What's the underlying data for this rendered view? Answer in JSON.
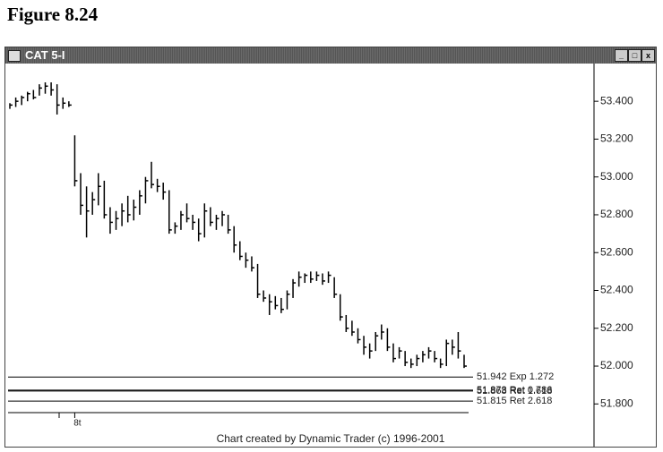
{
  "figure_title": "Figure 8.24",
  "window_title": "CAT 5-I",
  "chart_data": {
    "type": "ohlc",
    "categories": [
      null,
      null,
      null,
      null,
      null,
      null,
      null,
      null,
      null,
      null,
      null,
      "8t",
      null,
      null,
      null,
      null,
      null,
      null,
      null,
      null,
      null,
      null,
      null,
      null,
      null,
      null,
      null,
      null,
      null,
      null,
      null,
      null,
      null,
      null,
      null,
      null,
      null,
      null,
      null,
      null,
      null,
      null,
      null,
      null,
      null,
      null,
      null,
      null,
      null,
      null,
      null,
      null,
      null,
      null,
      null,
      null,
      null,
      null,
      null,
      null,
      null,
      null,
      null,
      null,
      null,
      null,
      null,
      null,
      null,
      null,
      null,
      null,
      null,
      null,
      null,
      null,
      null,
      null
    ],
    "high": [
      53.39,
      53.42,
      53.43,
      53.45,
      53.46,
      53.49,
      53.5,
      53.5,
      53.49,
      53.42,
      53.4,
      53.22,
      53.02,
      52.95,
      52.92,
      53.02,
      52.98,
      52.84,
      52.82,
      52.86,
      52.9,
      52.88,
      52.93,
      53.0,
      53.08,
      52.99,
      52.97,
      52.93,
      52.76,
      52.82,
      52.86,
      52.8,
      52.78,
      52.86,
      52.84,
      52.8,
      52.82,
      52.8,
      52.74,
      52.66,
      52.6,
      52.58,
      52.54,
      52.4,
      52.38,
      52.37,
      52.36,
      52.4,
      52.46,
      52.5,
      52.49,
      52.5,
      52.5,
      52.49,
      52.5,
      52.47,
      52.38,
      52.27,
      52.24,
      52.2,
      52.16,
      52.12,
      52.18,
      52.22,
      52.2,
      52.12,
      52.1,
      52.08,
      52.04,
      52.06,
      52.08,
      52.1,
      52.08,
      52.04,
      52.14,
      52.14,
      52.18,
      52.06
    ],
    "low": [
      53.36,
      53.37,
      53.38,
      53.4,
      53.41,
      53.43,
      53.44,
      53.43,
      53.33,
      53.36,
      53.37,
      52.95,
      52.8,
      52.68,
      52.8,
      52.85,
      52.78,
      52.7,
      52.72,
      52.74,
      52.76,
      52.77,
      52.8,
      52.86,
      52.94,
      52.92,
      52.88,
      52.7,
      52.7,
      52.72,
      52.76,
      52.72,
      52.66,
      52.68,
      52.74,
      52.72,
      52.74,
      52.7,
      52.6,
      52.56,
      52.52,
      52.5,
      52.36,
      52.34,
      52.27,
      52.3,
      52.28,
      52.3,
      52.36,
      52.42,
      52.44,
      52.44,
      52.45,
      52.43,
      52.44,
      52.36,
      52.24,
      52.18,
      52.16,
      52.12,
      52.06,
      52.04,
      52.08,
      52.14,
      52.08,
      52.02,
      52.04,
      52.0,
      51.99,
      52.0,
      52.02,
      52.04,
      52.02,
      51.99,
      52.0,
      52.06,
      52.04,
      51.99
    ],
    "close": [
      53.38,
      53.4,
      53.42,
      53.44,
      53.42,
      53.47,
      53.48,
      53.46,
      53.38,
      53.39,
      53.38,
      52.98,
      52.85,
      52.82,
      52.88,
      52.95,
      52.8,
      52.76,
      52.78,
      52.82,
      52.8,
      52.84,
      52.9,
      52.98,
      52.96,
      52.95,
      52.92,
      52.72,
      52.74,
      52.8,
      52.78,
      52.76,
      52.7,
      52.82,
      52.76,
      52.78,
      52.8,
      52.72,
      52.64,
      52.58,
      52.56,
      52.52,
      52.38,
      52.36,
      52.34,
      52.32,
      52.3,
      52.38,
      52.44,
      52.47,
      52.48,
      52.46,
      52.48,
      52.45,
      52.48,
      52.38,
      52.26,
      52.2,
      52.18,
      52.14,
      52.1,
      52.08,
      52.16,
      52.18,
      52.1,
      52.04,
      52.08,
      52.02,
      52.01,
      52.04,
      52.06,
      52.08,
      52.04,
      52.01,
      52.12,
      52.1,
      52.08,
      52.0
    ],
    "color": "#000000",
    "ylim": [
      51.65,
      53.59
    ],
    "yticks": [
      {
        "value": 53.4,
        "label": "53.400"
      },
      {
        "value": 53.2,
        "label": "53.200"
      },
      {
        "value": 53.0,
        "label": "53.000"
      },
      {
        "value": 52.8,
        "label": "52.800"
      },
      {
        "value": 52.6,
        "label": "52.600"
      },
      {
        "value": 52.4,
        "label": "52.400"
      },
      {
        "value": 52.2,
        "label": "52.200"
      },
      {
        "value": 52.0,
        "label": "52.000"
      },
      {
        "value": 51.8,
        "label": "51.800"
      }
    ],
    "levels": [
      {
        "value": 51.942,
        "label": "51.942 Exp 1.272"
      },
      {
        "value": 51.873,
        "label": "51.873 Ret 0.786"
      },
      {
        "value": 51.868,
        "label": "51.868 Ret 1.618"
      },
      {
        "value": 51.815,
        "label": "51.815 Ret 2.618"
      }
    ],
    "footer": "Chart created by Dynamic Trader (c) 1996-2001"
  }
}
